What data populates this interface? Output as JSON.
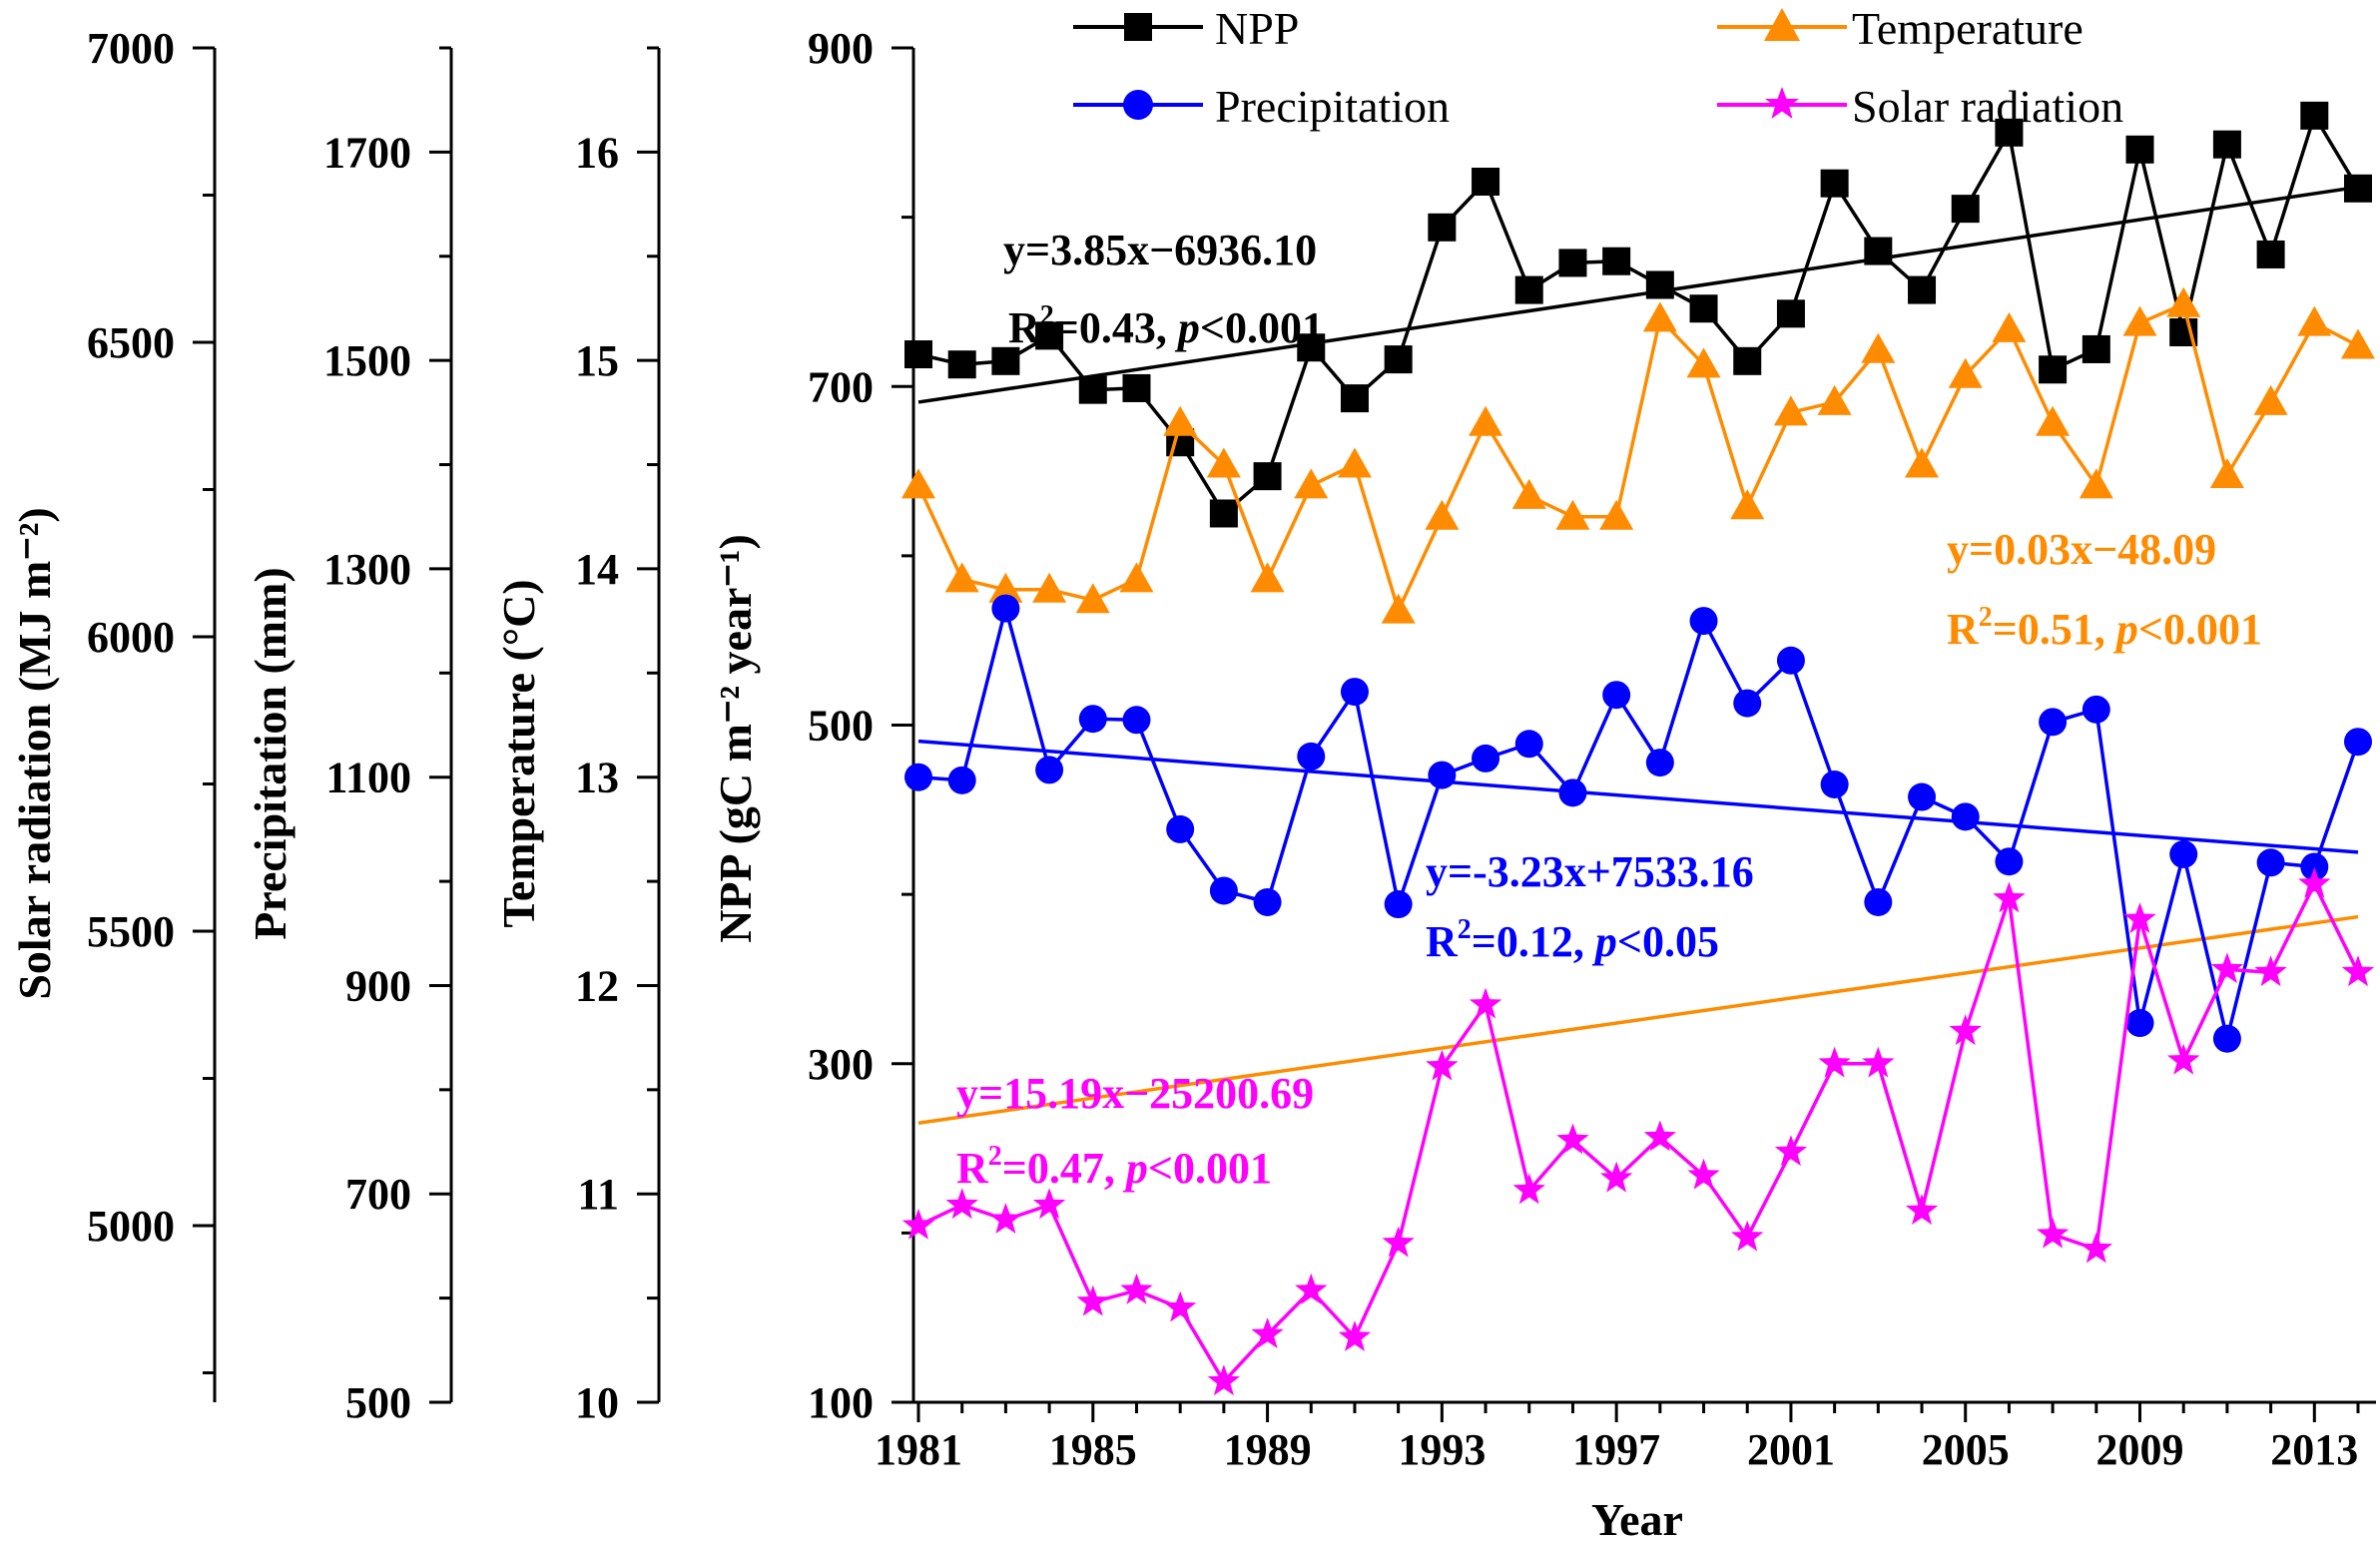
{
  "chart_data": {
    "type": "line",
    "title": "",
    "xlabel": "Year",
    "x": [
      1981,
      1982,
      1983,
      1984,
      1985,
      1986,
      1987,
      1988,
      1989,
      1990,
      1991,
      1992,
      1993,
      1994,
      1995,
      1996,
      1997,
      1998,
      1999,
      2000,
      2001,
      2002,
      2003,
      2004,
      2005,
      2006,
      2007,
      2008,
      2009,
      2010,
      2011,
      2012,
      2013,
      2014
    ],
    "x_ticks": [
      1981,
      1985,
      1989,
      1993,
      1997,
      2001,
      2005,
      2009,
      2013
    ],
    "x_tick_labels": [
      "1981",
      "1985",
      "1989",
      "1993",
      "1997",
      "2001",
      "2005",
      "2009",
      "2013"
    ],
    "xlim": [
      1980.8,
      2014.4
    ],
    "axes": [
      {
        "id": "npp",
        "label": "NPP (gC m⁻² year⁻¹)",
        "label_html": "NPP (gC m<sup>−2</sup> year<sup>−1</sup>)",
        "ylim": [
          100,
          900
        ],
        "ticks": [
          100,
          300,
          500,
          700,
          900
        ],
        "tick_labels": [
          "100",
          "300",
          "500",
          "700",
          "900"
        ]
      },
      {
        "id": "temp",
        "label": "Temperature (°C)",
        "ylim": [
          10,
          16.5
        ],
        "ticks": [
          10,
          11,
          12,
          13,
          14,
          15,
          16
        ],
        "tick_labels": [
          "10",
          "11",
          "12",
          "13",
          "14",
          "15",
          "16"
        ]
      },
      {
        "id": "precip",
        "label": "Precipitation (mm)",
        "ylim": [
          500,
          1800
        ],
        "ticks": [
          500,
          700,
          900,
          1100,
          1300,
          1500,
          1700
        ],
        "tick_labels": [
          "500",
          "700",
          "900",
          "1100",
          "1300",
          "1500",
          "1700"
        ]
      },
      {
        "id": "solar",
        "label": "Solar radiation (MJ m⁻²)",
        "ylim": [
          4700,
          7000
        ],
        "ticks": [
          5000,
          5500,
          6000,
          6500,
          7000
        ],
        "tick_labels": [
          "5000",
          "5500",
          "6000",
          "6500",
          "7000"
        ]
      }
    ],
    "series": [
      {
        "name": "NPP",
        "axis": "npp",
        "color": "#000000",
        "marker": "square",
        "values": [
          719,
          713,
          715,
          730,
          698,
          699,
          667,
          625,
          647,
          723,
          693,
          716,
          794,
          821,
          757,
          773,
          774,
          760,
          746,
          715,
          743,
          820,
          780,
          757,
          805,
          850,
          710,
          722,
          840,
          732,
          843,
          778,
          860,
          817
        ],
        "trend": {
          "slope": 3.85,
          "intercept": -6936.1
        }
      },
      {
        "name": "Temperature",
        "axis": "temp",
        "color": "#ff8c00",
        "marker": "triangle",
        "values": [
          14.4,
          13.95,
          13.9,
          13.9,
          13.85,
          13.95,
          14.7,
          14.5,
          13.95,
          14.4,
          14.5,
          13.8,
          14.25,
          14.7,
          14.35,
          14.25,
          14.25,
          15.2,
          14.98,
          14.3,
          14.75,
          14.8,
          15.05,
          14.5,
          14.93,
          15.15,
          14.7,
          14.4,
          15.18,
          15.27,
          14.45,
          14.8,
          15.18,
          15.07
        ],
        "trend": {
          "slope": 0.03,
          "intercept": -48.09
        }
      },
      {
        "name": "Precipitation",
        "axis": "precip",
        "color": "#0000ff",
        "marker": "circle",
        "values": [
          1100,
          1097,
          1262,
          1107,
          1156,
          1155,
          1050,
          991,
          980,
          1120,
          1182,
          978,
          1102,
          1118,
          1132,
          1085,
          1179,
          1114,
          1250,
          1171,
          1212,
          1093,
          980,
          1081,
          1062,
          1019,
          1153,
          1165,
          864,
          1026,
          849,
          1018,
          1014,
          1134
        ],
        "trend": {
          "slope": -3.23,
          "intercept": 7533.16
        }
      },
      {
        "name": "Solar radiation",
        "axis": "solar",
        "color": "#ff00ff",
        "marker": "star",
        "values": [
          5000,
          5035,
          5010,
          5035,
          4870,
          4890,
          4860,
          4735,
          4815,
          4890,
          4810,
          4970,
          5270,
          5375,
          5060,
          5145,
          5080,
          5150,
          5085,
          4980,
          5125,
          5275,
          5275,
          5025,
          5330,
          5555,
          4985,
          4960,
          5520,
          5280,
          5435,
          5430,
          5580,
          5430
        ],
        "trend": {
          "slope": 15.19,
          "intercept": -25200.69,
          "plot_axis": "npp"
        }
      }
    ],
    "legend": {
      "position": "top",
      "entries": [
        "NPP",
        "Temperature",
        "Precipitation",
        "Solar radiation"
      ]
    },
    "annotations": [
      {
        "series": "NPP",
        "equation": "y=3.85x−6936.10",
        "r2": "0.43",
        "p": "0.001",
        "color": "#000000"
      },
      {
        "series": "Temperature",
        "equation": "y=0.03x−48.09",
        "r2": "0.51",
        "p": "0.001",
        "color": "#ff8c00"
      },
      {
        "series": "Precipitation",
        "equation": "y=-3.23x+7533.16",
        "r2": "0.12",
        "p": "0.05",
        "color": "#0000ff"
      },
      {
        "series": "Solar radiation",
        "equation": "y=15.19x−25200.69",
        "r2": "0.47",
        "p": "0.001",
        "color": "#ff00ff"
      }
    ]
  }
}
